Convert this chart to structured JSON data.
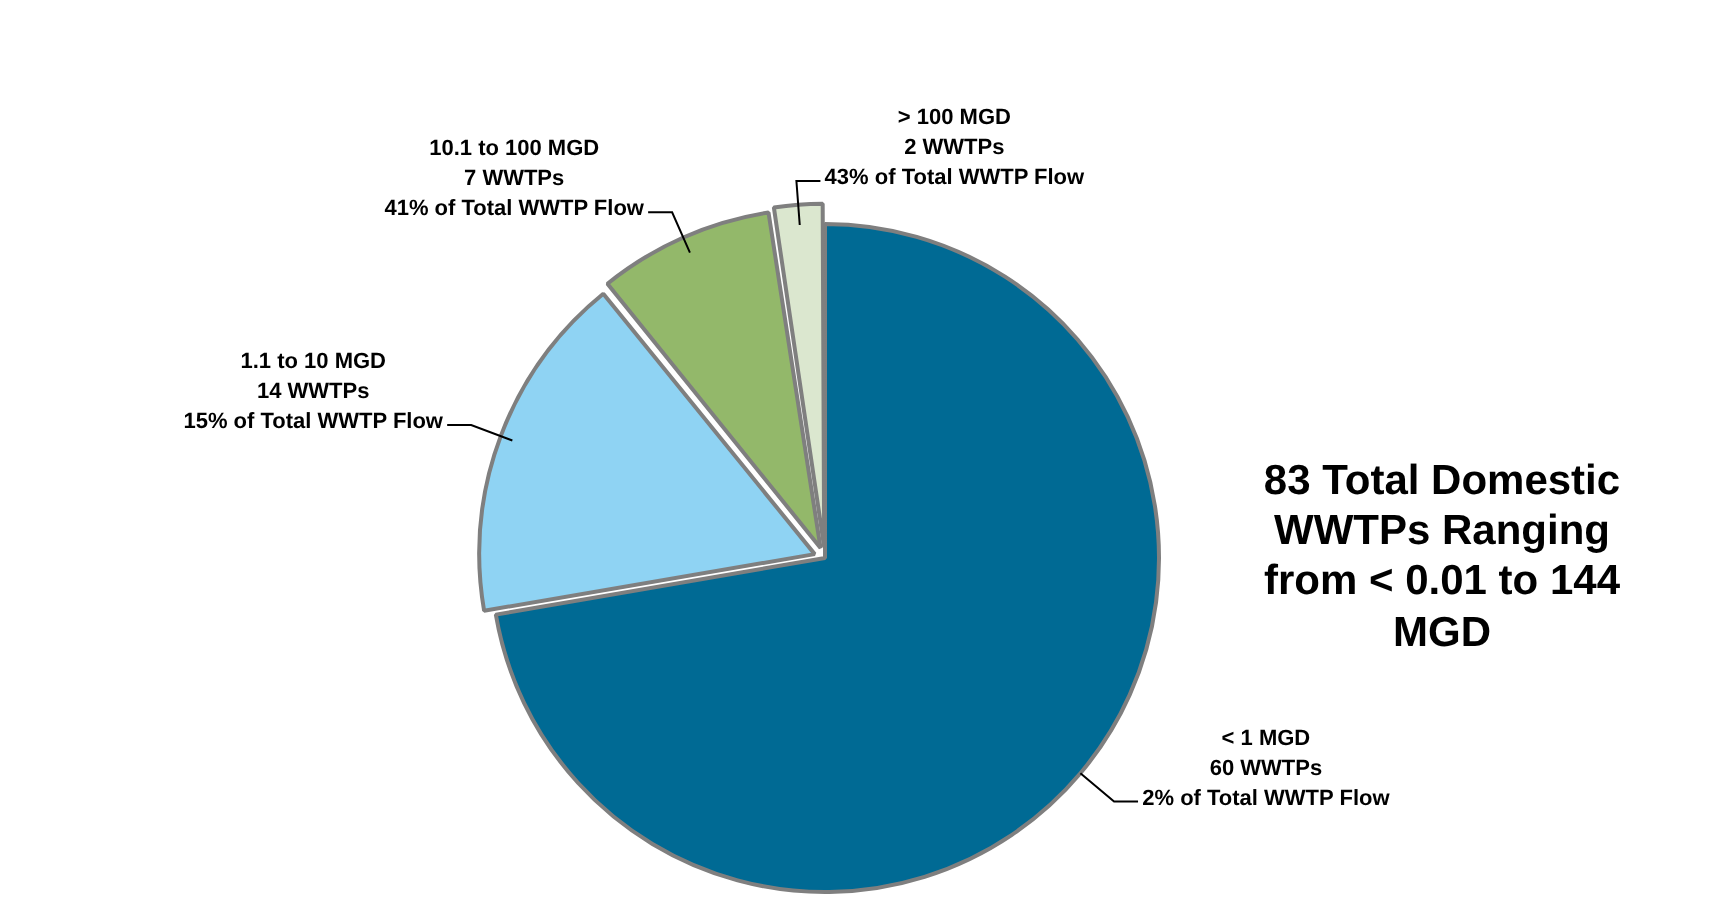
{
  "chart_data": {
    "type": "pie",
    "categories": [
      "< 1 MGD",
      "1.1 to 10 MGD",
      "10.1 to 100 MGD",
      "> 100 MGD"
    ],
    "values": [
      60,
      14,
      7,
      2
    ],
    "colors": [
      "#006a94",
      "#8fd3f3",
      "#93b86a",
      "#dbe7cf"
    ],
    "value_labels": [
      "60 WWTPs\n2% of Total WWTP Flow",
      "14 WWTPs\n15% of Total WWTP Flow",
      "7 WWTPs\n41% of Total WWTP Flow",
      "2 WWTPs\n43% of Total WWTP Flow"
    ],
    "annotations": [
      "83 Total Domestic WWTPs Ranging from < 0.01 to 144 MGD"
    ]
  }
}
